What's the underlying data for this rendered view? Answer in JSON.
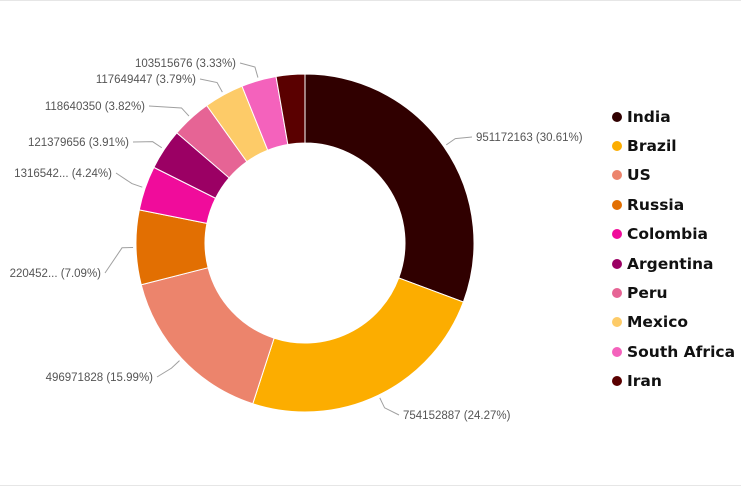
{
  "chart_data": {
    "type": "pie",
    "style": "donut",
    "legend_position": "right",
    "categories": [
      "India",
      "Brazil",
      "US",
      "Russia",
      "Colombia",
      "Argentina",
      "Peru",
      "Mexico",
      "South Africa",
      "Iran"
    ],
    "values": [
      951172163,
      754152887,
      496971828,
      220452000,
      131654200,
      121379656,
      118640350,
      117649447,
      103515676,
      85000000
    ],
    "percents": [
      30.61,
      24.27,
      15.99,
      7.09,
      4.24,
      3.91,
      3.82,
      3.79,
      3.33,
      2.74
    ],
    "data_labels": [
      "951172163 (30.61%)",
      "754152887 (24.27%)",
      "496971828 (15.99%)",
      "220452... (7.09%)",
      "1316542... (4.24%)",
      "121379656 (3.91%)",
      "118640350 (3.82%)",
      "117649447 (3.79%)",
      "103515676 (3.33%)",
      ""
    ],
    "colors": [
      "#300000",
      "#fcad00",
      "#ec846c",
      "#e26f02",
      "#f00c9b",
      "#9b0064",
      "#e66495",
      "#fdcb68",
      "#f462bc",
      "#5a0000"
    ]
  }
}
